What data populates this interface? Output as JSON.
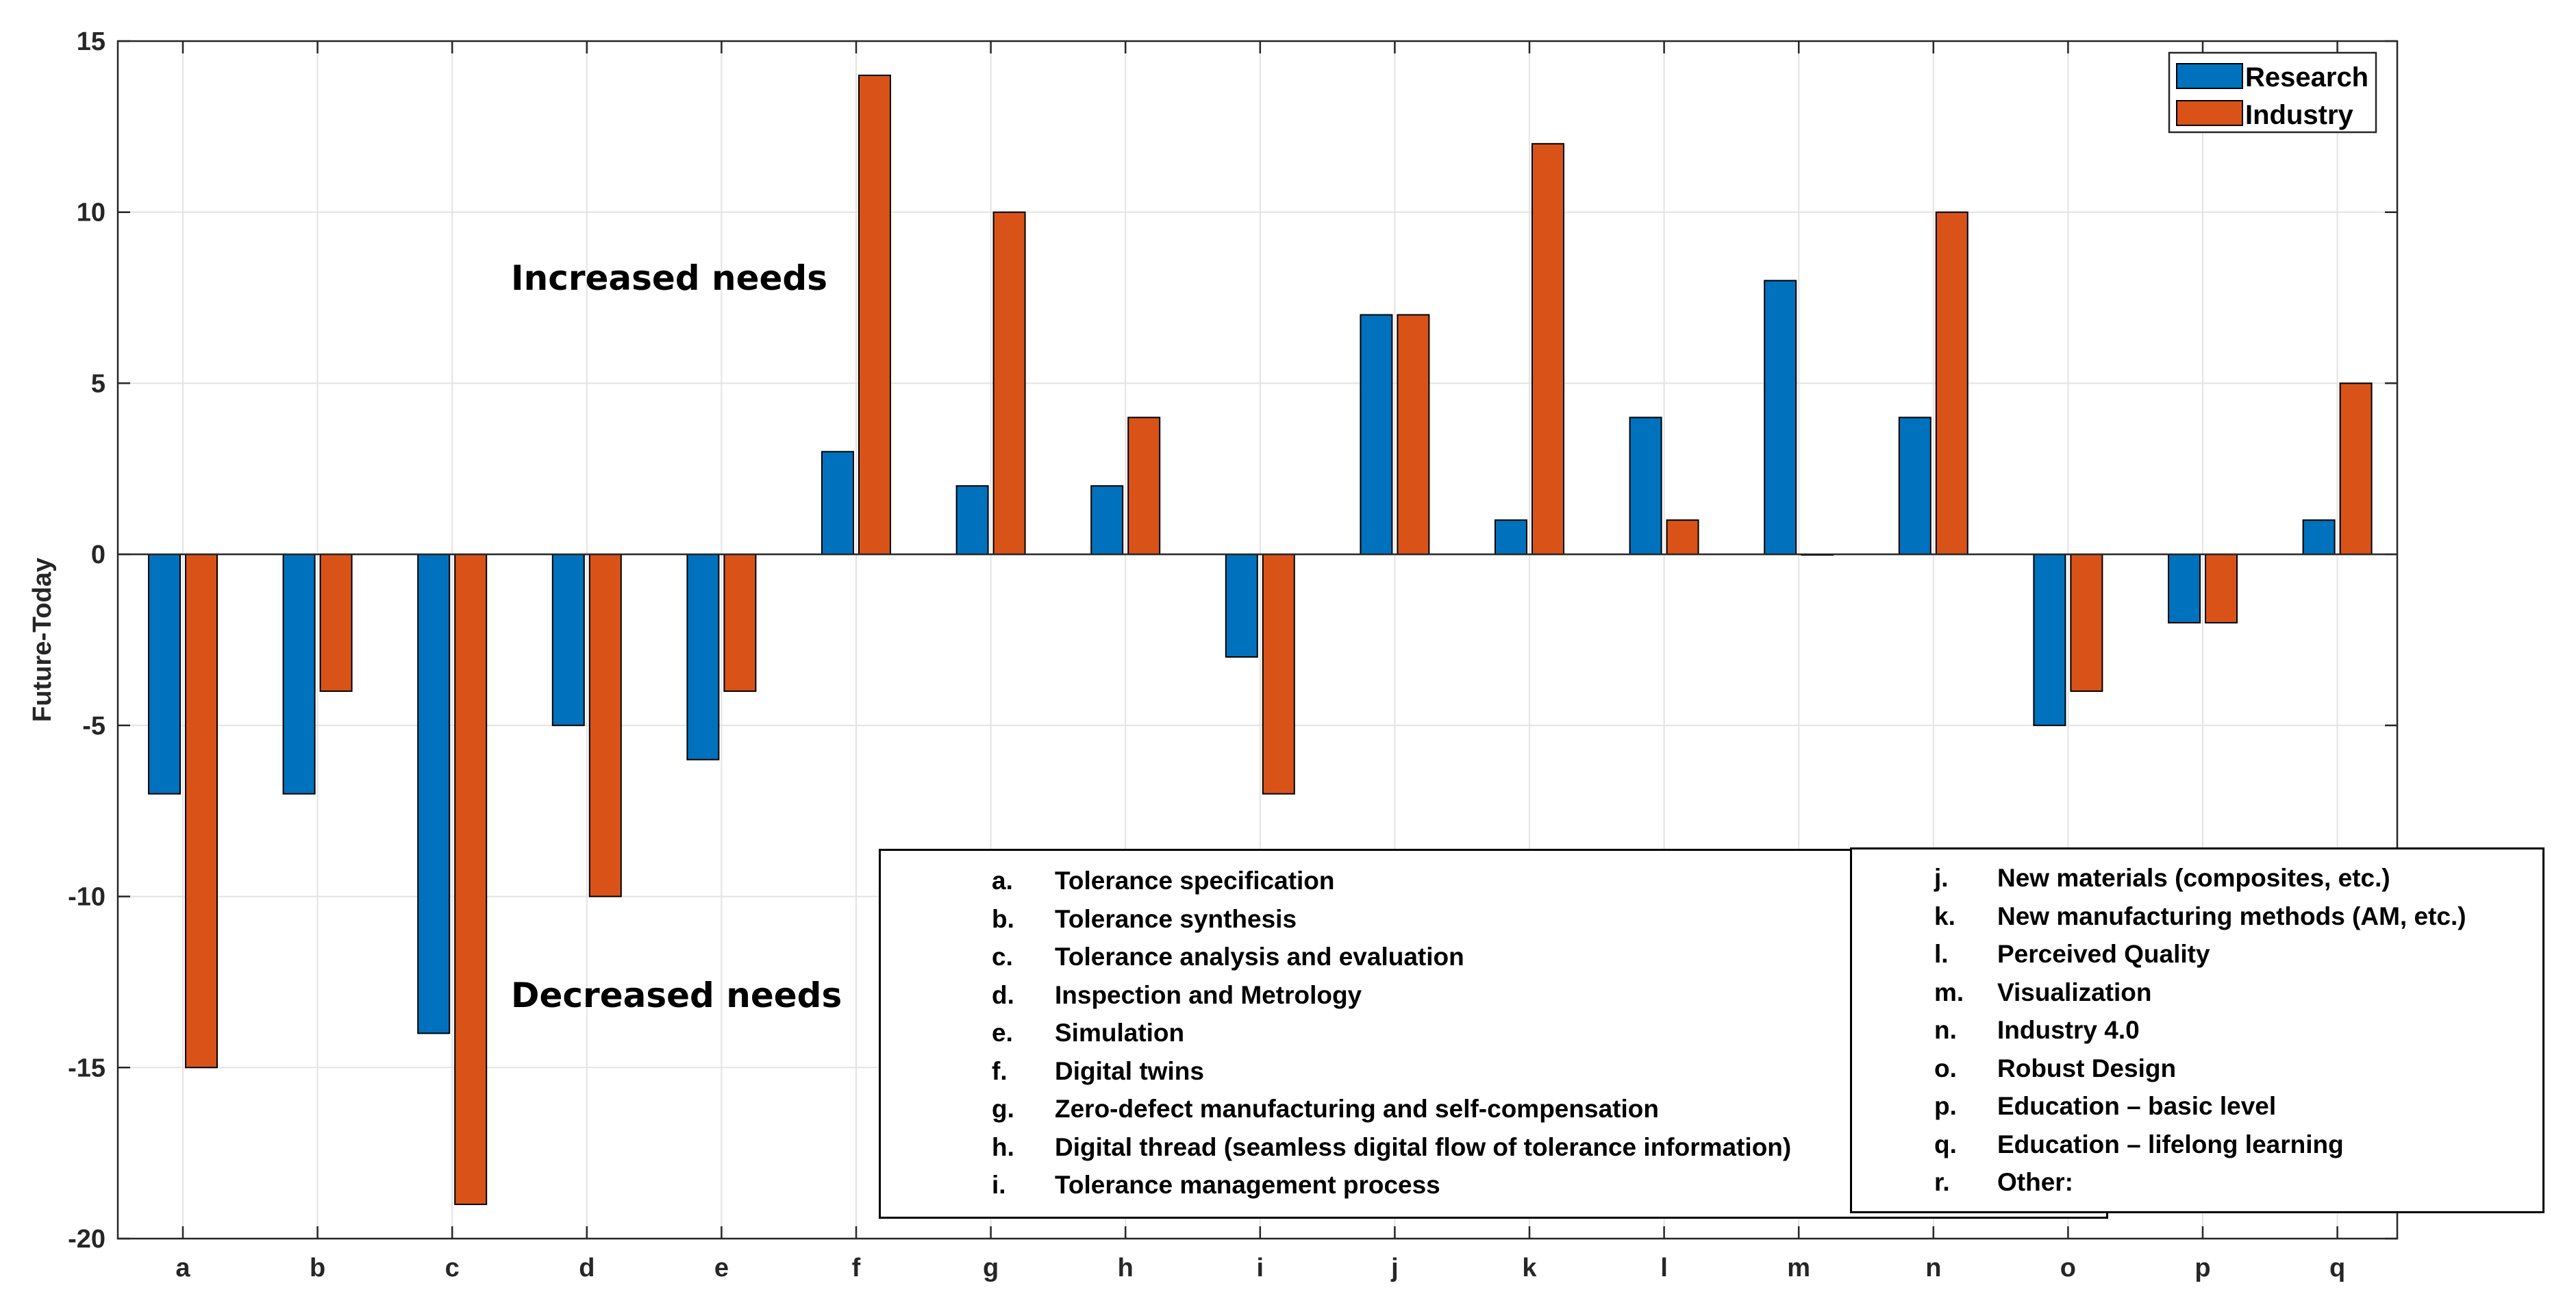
{
  "chart_data": {
    "type": "bar",
    "categories": [
      "a",
      "b",
      "c",
      "d",
      "e",
      "f",
      "g",
      "h",
      "i",
      "j",
      "k",
      "l",
      "m",
      "n",
      "o",
      "p",
      "q"
    ],
    "series": [
      {
        "name": "Research",
        "color": "#0072BD",
        "values": [
          -7,
          -7,
          -14,
          -5,
          -6,
          3,
          2,
          2,
          -3,
          7,
          1,
          4,
          8,
          4,
          -5,
          -2,
          1
        ]
      },
      {
        "name": "Industry",
        "color": "#D95319",
        "values": [
          -15,
          -4,
          -19,
          -10,
          -4,
          14,
          10,
          4,
          -7,
          7,
          12,
          1,
          0,
          10,
          -4,
          -2,
          5
        ]
      }
    ],
    "title": "",
    "xlabel": "",
    "ylabel": "Future-Today",
    "ylim": [
      -20,
      15
    ],
    "yticks": [
      "15",
      "10",
      "5",
      "0",
      "-5",
      "-10",
      "-15",
      "-20"
    ],
    "ytick_values": [
      15,
      10,
      5,
      0,
      -5,
      -10,
      -15,
      -20
    ],
    "grid": true,
    "legend_position": "top-right",
    "annotations": {
      "increased": "Increased needs",
      "decreased": "Decreased needs"
    }
  },
  "key_left": [
    {
      "letter": "a.",
      "text": "Tolerance specification"
    },
    {
      "letter": "b.",
      "text": "Tolerance synthesis"
    },
    {
      "letter": "c.",
      "text": "Tolerance analysis and evaluation"
    },
    {
      "letter": "d.",
      "text": "Inspection and Metrology"
    },
    {
      "letter": "e.",
      "text": "Simulation"
    },
    {
      "letter": "f.",
      "text": "Digital twins"
    },
    {
      "letter": "g.",
      "text": "Zero-defect manufacturing and self-compensation"
    },
    {
      "letter": "h.",
      "text": "Digital thread (seamless digital flow of tolerance information)"
    },
    {
      "letter": "i.",
      "text": "Tolerance management process"
    }
  ],
  "key_right": [
    {
      "letter": "j.",
      "text": "New materials (composites, etc.)"
    },
    {
      "letter": "k.",
      "text": "New manufacturing methods (AM, etc.)"
    },
    {
      "letter": "l.",
      "text": "Perceived Quality"
    },
    {
      "letter": "m.",
      "text": "Visualization"
    },
    {
      "letter": "n.",
      "text": "Industry 4.0"
    },
    {
      "letter": "o.",
      "text": "Robust Design"
    },
    {
      "letter": "p.",
      "text": "Education – basic level"
    },
    {
      "letter": "q.",
      "text": "Education – lifelong learning"
    },
    {
      "letter": "r.",
      "text": "Other:"
    }
  ]
}
